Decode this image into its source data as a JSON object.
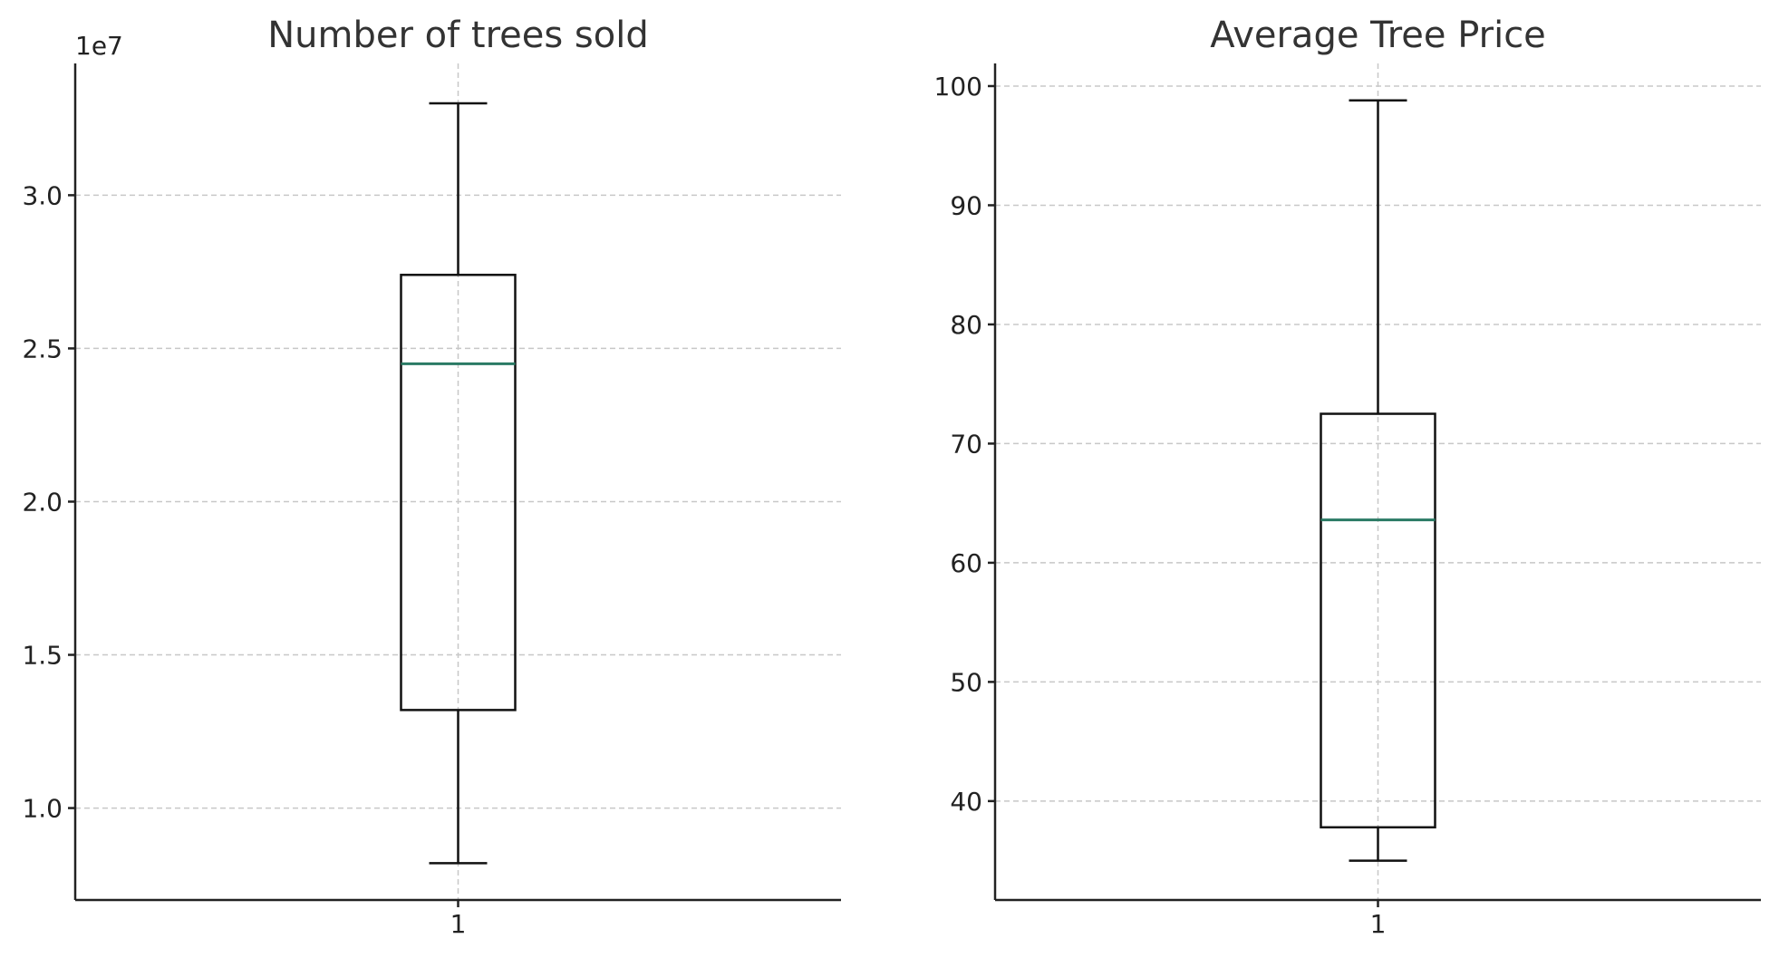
{
  "chart_data": [
    {
      "type": "box",
      "title": "Number of trees sold",
      "offset_text": "1e7",
      "categories": [
        "1"
      ],
      "ylim": [
        0.7,
        3.43
      ],
      "yticks": [
        1.0,
        1.5,
        2.0,
        2.5,
        3.0
      ],
      "ytick_labels": [
        "1.0",
        "1.5",
        "2.0",
        "2.5",
        "3.0"
      ],
      "xtick_labels": [
        "1"
      ],
      "grid": true,
      "colors": {
        "median": "#2a7a64",
        "box": "#111111",
        "grid": "#c8c8c8"
      },
      "box": {
        "whisker_low": 0.82,
        "q1": 1.32,
        "median": 2.45,
        "q3": 2.74,
        "whisker_high": 3.3
      }
    },
    {
      "type": "box",
      "title": "Average Tree Price",
      "offset_text": "",
      "categories": [
        "1"
      ],
      "ylim": [
        31.7,
        101.9
      ],
      "yticks": [
        40,
        50,
        60,
        70,
        80,
        90,
        100
      ],
      "ytick_labels": [
        "40",
        "50",
        "60",
        "70",
        "80",
        "90",
        "100"
      ],
      "xtick_labels": [
        "1"
      ],
      "grid": true,
      "colors": {
        "median": "#2a7a64",
        "box": "#111111",
        "grid": "#c8c8c8"
      },
      "box": {
        "whisker_low": 35.0,
        "q1": 37.8,
        "median": 63.6,
        "q3": 72.5,
        "whisker_high": 98.8
      }
    }
  ]
}
